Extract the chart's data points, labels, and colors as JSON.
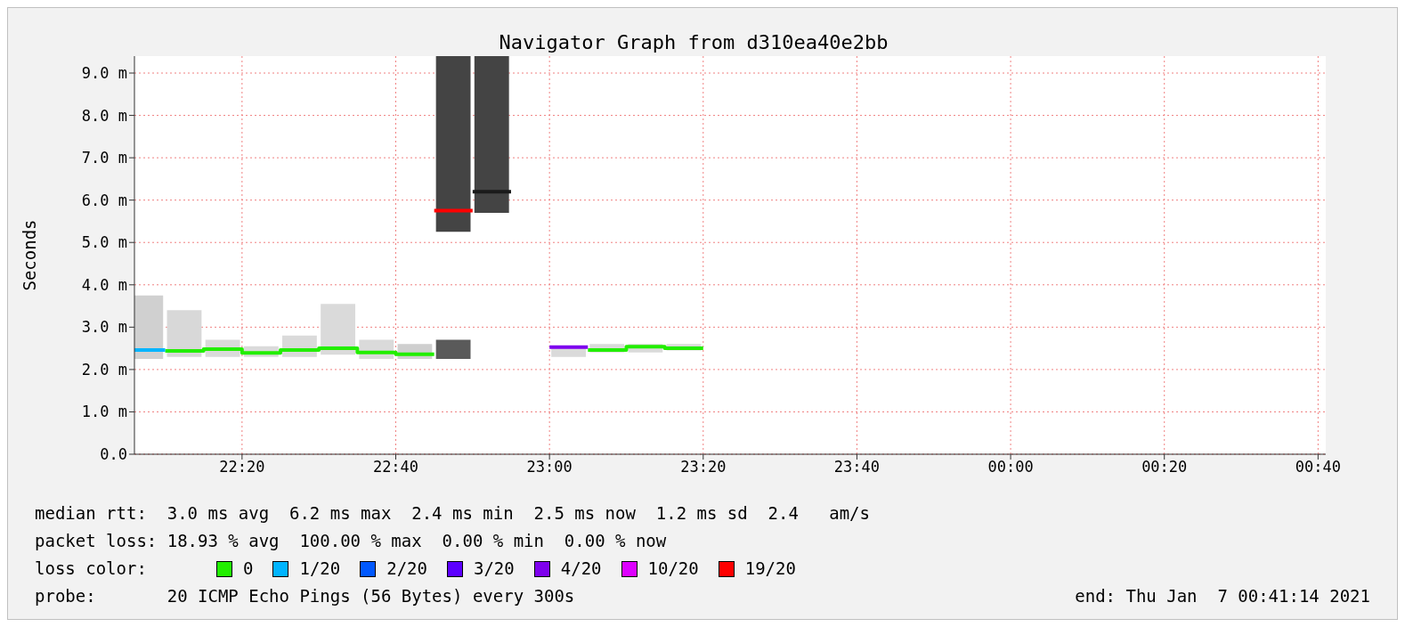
{
  "chart_data": {
    "type": "step",
    "title": "Navigator Graph from d310ea40e2bb",
    "ylabel": "Seconds",
    "xlim": [
      "2021-01-06T22:06",
      "2021-01-07T00:41"
    ],
    "xticks": [
      {
        "value": "2021-01-06T22:20",
        "label": "22:20"
      },
      {
        "value": "2021-01-06T22:40",
        "label": "22:40"
      },
      {
        "value": "2021-01-06T23:00",
        "label": "23:00"
      },
      {
        "value": "2021-01-06T23:20",
        "label": "23:20"
      },
      {
        "value": "2021-01-06T23:40",
        "label": "23:40"
      },
      {
        "value": "2021-01-07T00:00",
        "label": "00:00"
      },
      {
        "value": "2021-01-07T00:20",
        "label": "00:20"
      },
      {
        "value": "2021-01-07T00:40",
        "label": "00:40"
      }
    ],
    "ylim": [
      0,
      9.4
    ],
    "yticks": [
      {
        "value": 0,
        "label": "0.0"
      },
      {
        "value": 1,
        "label": "1.0 m"
      },
      {
        "value": 2,
        "label": "2.0 m"
      },
      {
        "value": 3,
        "label": "3.0 m"
      },
      {
        "value": 4,
        "label": "4.0 m"
      },
      {
        "value": 5,
        "label": "5.0 m"
      },
      {
        "value": 6,
        "label": "6.0 m"
      },
      {
        "value": 7,
        "label": "7.0 m"
      },
      {
        "value": 8,
        "label": "8.0 m"
      },
      {
        "value": 9,
        "label": "9.0 m"
      }
    ],
    "grid": true,
    "legend": "bottom",
    "legend_title": "loss color:",
    "series": [
      {
        "type": "bar",
        "color": "#dadada",
        "x": [
          "2021-01-06T22:07:30",
          "2021-01-06T22:12:30",
          "2021-01-06T22:17:30",
          "2021-01-06T22:22:30",
          "2021-01-06T22:27:30",
          "2021-01-06T22:32:30",
          "2021-01-06T22:37:30",
          "2021-01-06T22:42:30",
          "2021-01-06T22:47:30",
          "2021-01-06T23:02:30",
          "2021-01-06T23:07:30",
          "2021-01-06T23:12:30",
          "2021-01-06T23:17:30"
        ],
        "base": [
          2.25,
          2.3,
          2.3,
          2.3,
          2.3,
          2.35,
          2.25,
          2.25,
          2.25,
          2.3,
          2.4,
          2.4,
          2.45
        ],
        "values": [
          1.5,
          1.1,
          0.4,
          0.25,
          0.5,
          1.2,
          0.45,
          0.35,
          0.45,
          0.25,
          0.2,
          0.2,
          0.15
        ],
        "colors": [
          "#d0d0d0",
          "#d8d8d8",
          "#dadada",
          "#dadada",
          "#dadada",
          "#dadada",
          "#dadada",
          "#cfcfcf",
          "#5a5a5a",
          "#dadada",
          "#dadada",
          "#dadada",
          "#dadada"
        ]
      },
      {
        "type": "bar",
        "color": "#444444",
        "x": [
          "2021-01-06T22:47:30",
          "2021-01-06T22:52:30"
        ],
        "base": [
          5.25,
          5.7
        ],
        "values": [
          4.15,
          3.7
        ]
      },
      {
        "name": "0",
        "color": "#22ee00",
        "x": [
          "2021-01-06T22:10",
          "2021-01-06T22:15",
          "2021-01-06T22:20",
          "2021-01-06T22:25",
          "2021-01-06T22:30",
          "2021-01-06T22:35",
          "2021-01-06T22:40",
          "2021-01-06T22:45",
          "2021-01-06T22:55",
          "2021-01-06T23:05",
          "2021-01-06T23:10",
          "2021-01-06T23:15",
          "2021-01-06T23:20"
        ],
        "values": [
          2.44,
          2.48,
          2.39,
          2.46,
          2.5,
          2.4,
          2.36,
          2.36,
          null,
          2.46,
          2.54,
          2.5,
          2.5
        ]
      },
      {
        "name": "1/20",
        "color": "#00b4ff",
        "x": [
          "2021-01-06T22:06",
          "2021-01-06T22:10"
        ],
        "values": [
          2.46,
          2.46
        ]
      },
      {
        "name": "2/20",
        "color": "#0058ff"
      },
      {
        "name": "3/20",
        "color": "#5c00ff"
      },
      {
        "name": "4/20",
        "color": "#7e00ee",
        "x": [
          "2021-01-06T23:00",
          "2021-01-06T23:05"
        ],
        "values": [
          2.53,
          2.53
        ]
      },
      {
        "name": "10/20",
        "color": "#dd00ff"
      },
      {
        "name": "19/20",
        "color": "#ff0000",
        "x": [
          "2021-01-06T22:45",
          "2021-01-06T22:50"
        ],
        "values": [
          5.75,
          5.75
        ]
      },
      {
        "color": "#1a1a1a",
        "x": [
          "2021-01-06T22:50",
          "2021-01-06T22:55"
        ],
        "values": [
          6.2,
          6.2
        ]
      }
    ],
    "annotations": [
      "median rtt:  3.0 ms avg  6.2 ms max  2.4 ms min  2.5 ms now  1.2 ms sd  2.4   am/s",
      "packet loss: 18.93 % avg  100.00 % max  0.00 % min  0.00 % now",
      "probe:       20 ICMP Echo Pings (56 Bytes) every 300s",
      "end: Thu Jan  7 00:41:14 2021"
    ]
  }
}
